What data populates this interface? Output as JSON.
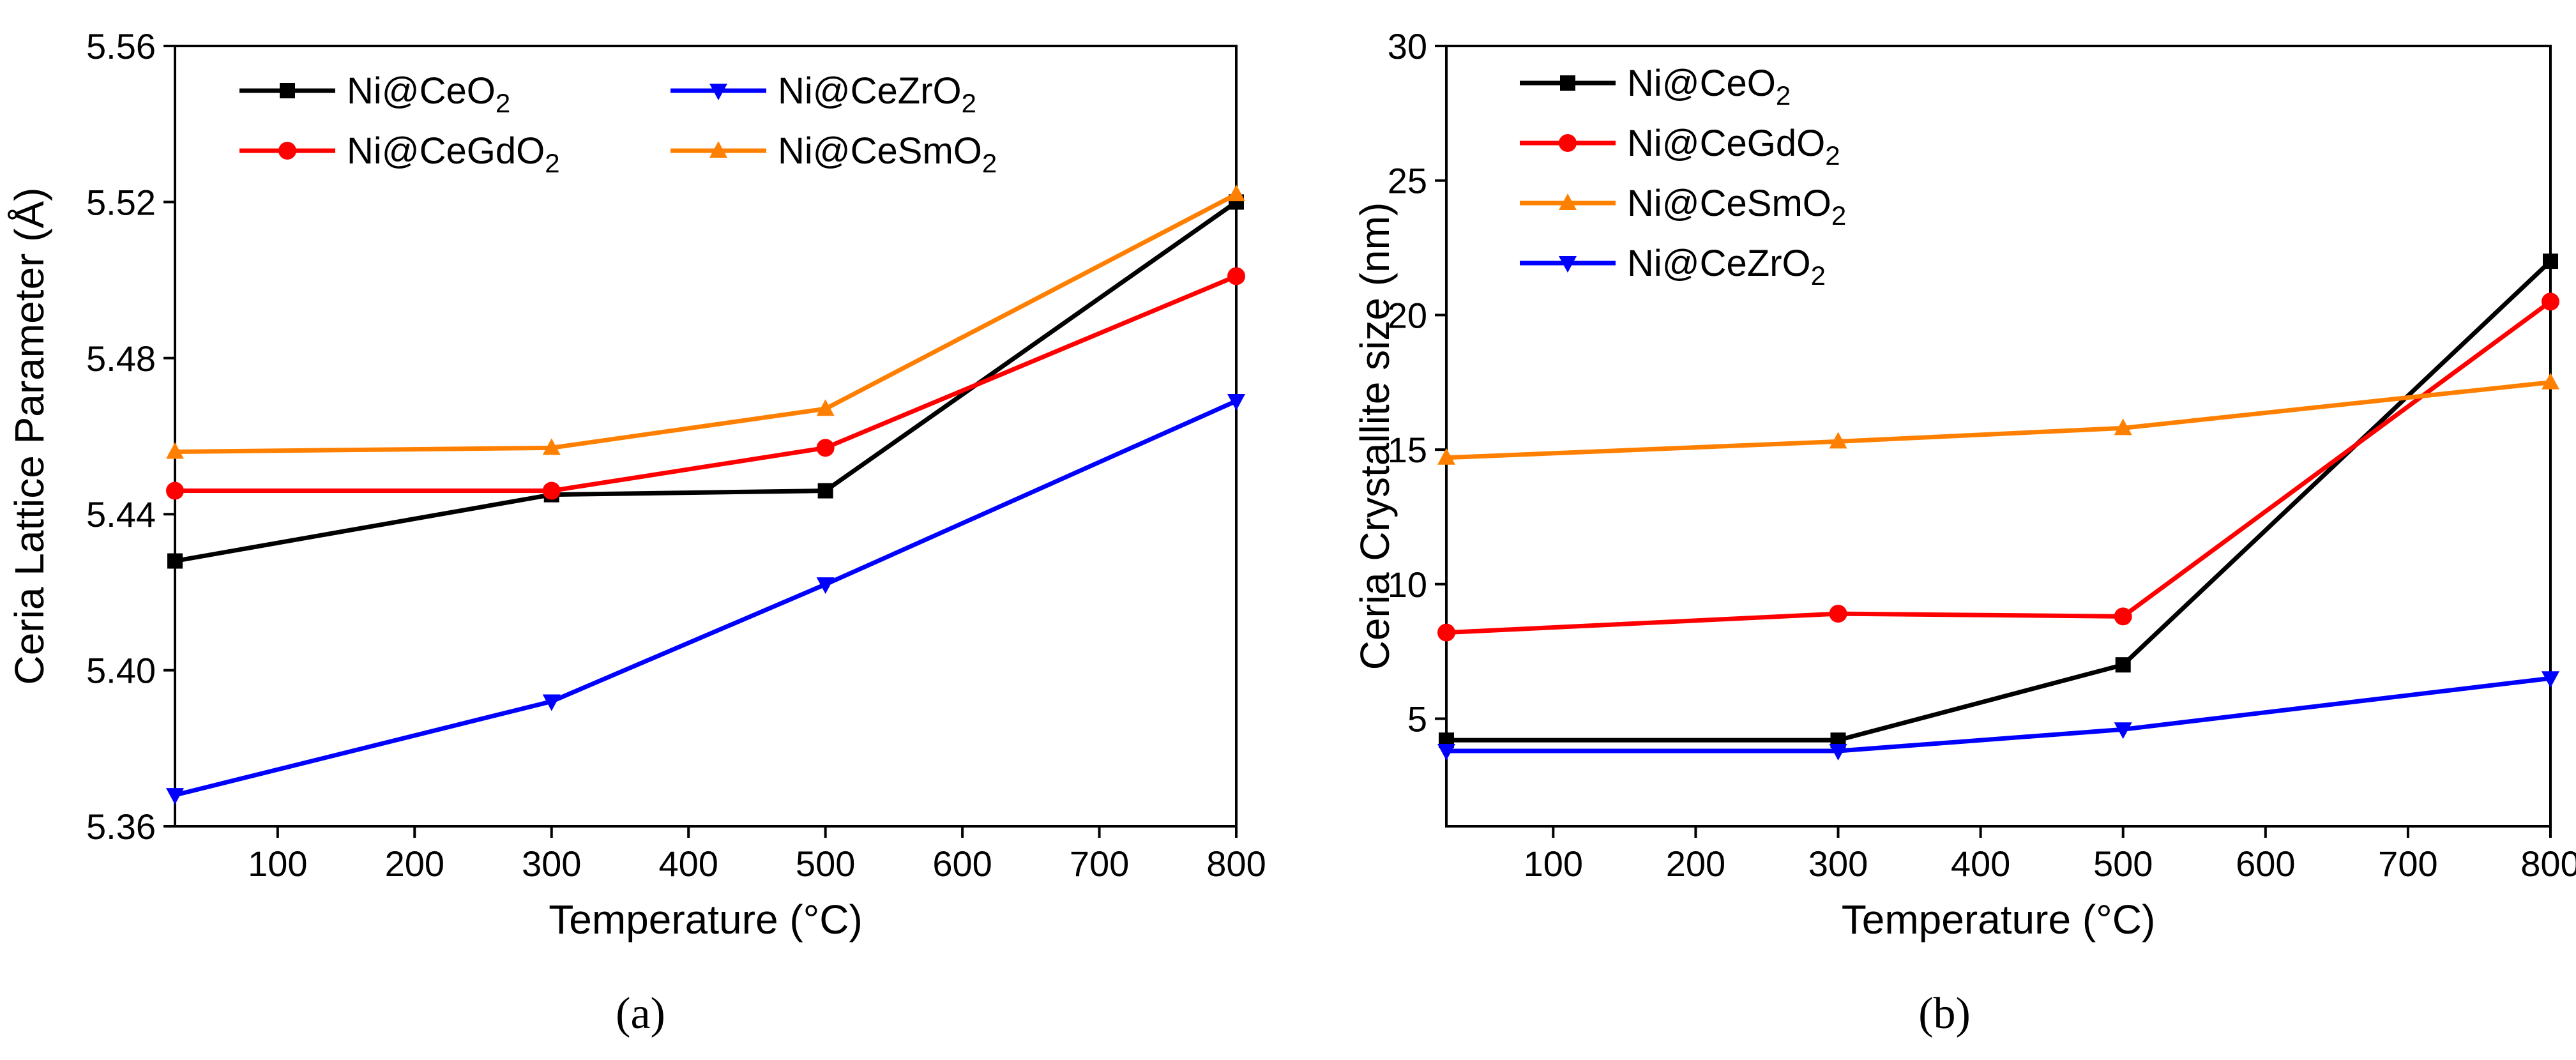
{
  "chart_data": [
    {
      "type": "line",
      "panel_label": "(a)",
      "xlabel": "Temperature (°C)",
      "ylabel": "Ceria Lattice Parameter (Å)",
      "xlim": [
        25,
        800
      ],
      "ylim": [
        5.36,
        5.56
      ],
      "x_ticks": [
        100,
        200,
        300,
        400,
        500,
        600,
        700,
        800
      ],
      "x_tick_labels": [
        "100",
        "200",
        "300",
        "400",
        "500",
        "600",
        "700",
        "800"
      ],
      "y_ticks": [
        5.36,
        5.4,
        5.44,
        5.48,
        5.52,
        5.56
      ],
      "y_tick_labels": [
        "5.36",
        "5.40",
        "5.44",
        "5.48",
        "5.52",
        "5.56"
      ],
      "grid": false,
      "legend": "top-left, two columns",
      "legend_order": [
        "Ni@CeO2",
        "Ni@CeZrO2",
        "Ni@CeGdO2",
        "Ni@CeSmO2"
      ],
      "x": [
        25,
        300,
        500,
        800
      ],
      "series": [
        {
          "name": "Ni@CeO2",
          "label_main": "Ni@CeO",
          "label_sub": "2",
          "color": "#000000",
          "marker": "square",
          "values": [
            5.428,
            5.445,
            5.446,
            5.52
          ]
        },
        {
          "name": "Ni@CeGdO2",
          "label_main": "Ni@CeGdO",
          "label_sub": "2",
          "color": "#ff0000",
          "marker": "circle",
          "values": [
            5.446,
            5.446,
            5.457,
            5.501
          ]
        },
        {
          "name": "Ni@CeSmO2",
          "label_main": "Ni@CeSmO",
          "label_sub": "2",
          "color": "#ff8000",
          "marker": "triangle-up",
          "values": [
            5.456,
            5.457,
            5.467,
            5.522
          ]
        },
        {
          "name": "Ni@CeZrO2",
          "label_main": "Ni@CeZrO",
          "label_sub": "2",
          "color": "#0000ff",
          "marker": "triangle-down",
          "values": [
            5.368,
            5.392,
            5.422,
            5.469
          ]
        }
      ]
    },
    {
      "type": "line",
      "panel_label": "(b)",
      "xlabel": "Temperature (°C)",
      "ylabel": "Ceria Crystallite size (nm)",
      "xlim": [
        25,
        800
      ],
      "ylim": [
        1,
        30
      ],
      "x_ticks": [
        100,
        200,
        300,
        400,
        500,
        600,
        700,
        800
      ],
      "x_tick_labels": [
        "100",
        "200",
        "300",
        "400",
        "500",
        "600",
        "700",
        "800"
      ],
      "y_ticks": [
        5,
        10,
        15,
        20,
        25,
        30
      ],
      "y_tick_labels": [
        "5",
        "10",
        "15",
        "20",
        "25",
        "30"
      ],
      "grid": false,
      "legend": "top-left, one column",
      "legend_order": [
        "Ni@CeO2",
        "Ni@CeGdO2",
        "Ni@CeSmO2",
        "Ni@CeZrO2"
      ],
      "x": [
        25,
        300,
        500,
        800
      ],
      "series": [
        {
          "name": "Ni@CeO2",
          "label_main": "Ni@CeO",
          "label_sub": "2",
          "color": "#000000",
          "marker": "square",
          "values": [
            4.2,
            4.2,
            7.0,
            22.0
          ]
        },
        {
          "name": "Ni@CeGdO2",
          "label_main": "Ni@CeGdO",
          "label_sub": "2",
          "color": "#ff0000",
          "marker": "circle",
          "values": [
            8.2,
            8.9,
            8.8,
            20.5
          ]
        },
        {
          "name": "Ni@CeSmO2",
          "label_main": "Ni@CeSmO",
          "label_sub": "2",
          "color": "#ff8000",
          "marker": "triangle-up",
          "values": [
            14.7,
            15.3,
            15.8,
            17.5
          ]
        },
        {
          "name": "Ni@CeZrO2",
          "label_main": "Ni@CeZrO",
          "label_sub": "2",
          "color": "#0000ff",
          "marker": "triangle-down",
          "values": [
            3.8,
            3.8,
            4.6,
            6.5
          ]
        }
      ]
    }
  ]
}
